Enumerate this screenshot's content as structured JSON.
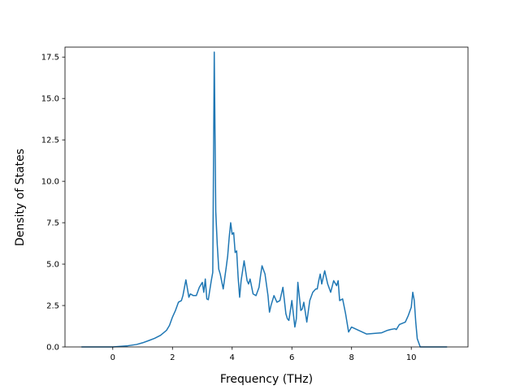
{
  "chart_data": {
    "type": "line",
    "title": "",
    "xlabel": "Frequency (THz)",
    "ylabel": "Density of States",
    "xlim": [
      -1.6,
      11.9
    ],
    "ylim": [
      0,
      18.1
    ],
    "grid": false,
    "legend": "none",
    "line_color": "#1f77b4",
    "xticks": [
      {
        "value": 0,
        "label": "0"
      },
      {
        "value": 2,
        "label": "2"
      },
      {
        "value": 4,
        "label": "4"
      },
      {
        "value": 6,
        "label": "6"
      },
      {
        "value": 8,
        "label": "8"
      },
      {
        "value": 10,
        "label": "10"
      }
    ],
    "yticks": [
      {
        "value": 0.0,
        "label": "0.0"
      },
      {
        "value": 2.5,
        "label": "2.5"
      },
      {
        "value": 5.0,
        "label": "5.0"
      },
      {
        "value": 7.5,
        "label": "7.5"
      },
      {
        "value": 10.0,
        "label": "10.0"
      },
      {
        "value": 12.5,
        "label": "12.5"
      },
      {
        "value": 15.0,
        "label": "15.0"
      },
      {
        "value": 17.5,
        "label": "17.5"
      }
    ],
    "series": [
      {
        "x": [
          -1.05,
          0.0,
          0.5,
          0.8,
          1.0,
          1.2,
          1.4,
          1.6,
          1.7,
          1.8,
          1.9,
          2.0,
          2.1,
          2.2,
          2.3,
          2.35,
          2.45,
          2.55,
          2.6,
          2.7,
          2.8,
          2.9,
          3.0,
          3.05,
          3.1,
          3.15,
          3.2,
          3.3,
          3.35,
          3.4,
          3.45,
          3.5,
          3.55,
          3.6,
          3.7,
          3.8,
          3.85,
          3.9,
          3.95,
          4.0,
          4.05,
          4.1,
          4.15,
          4.2,
          4.25,
          4.3,
          4.4,
          4.5,
          4.55,
          4.6,
          4.7,
          4.8,
          4.9,
          4.95,
          5.0,
          5.1,
          5.2,
          5.25,
          5.3,
          5.4,
          5.5,
          5.6,
          5.65,
          5.7,
          5.8,
          5.85,
          5.9,
          6.0,
          6.1,
          6.15,
          6.2,
          6.3,
          6.35,
          6.4,
          6.5,
          6.6,
          6.7,
          6.8,
          6.85,
          6.9,
          6.95,
          7.0,
          7.1,
          7.2,
          7.3,
          7.4,
          7.5,
          7.55,
          7.6,
          7.7,
          7.8,
          7.9,
          8.0,
          8.5,
          9.0,
          9.2,
          9.3,
          9.45,
          9.5,
          9.55,
          9.6,
          9.8,
          9.9,
          10.0,
          10.05,
          10.1,
          10.15,
          10.2,
          10.3,
          11.2
        ],
        "y": [
          0.0,
          0.0,
          0.07,
          0.15,
          0.25,
          0.38,
          0.52,
          0.7,
          0.85,
          1.0,
          1.3,
          1.8,
          2.2,
          2.7,
          2.8,
          3.1,
          4.05,
          3.0,
          3.2,
          3.1,
          3.1,
          3.6,
          3.9,
          3.3,
          4.1,
          2.9,
          2.85,
          4.0,
          4.5,
          17.8,
          8.2,
          6.2,
          4.7,
          4.4,
          3.5,
          4.8,
          5.5,
          6.6,
          7.5,
          6.8,
          6.9,
          5.7,
          5.8,
          4.2,
          3.0,
          4.0,
          5.2,
          4.0,
          3.8,
          4.1,
          3.2,
          3.1,
          3.6,
          4.3,
          4.9,
          4.4,
          3.1,
          2.1,
          2.5,
          3.1,
          2.7,
          2.8,
          3.2,
          3.6,
          2.0,
          1.7,
          1.6,
          2.8,
          1.2,
          1.7,
          3.9,
          2.2,
          2.3,
          2.7,
          1.5,
          2.8,
          3.3,
          3.5,
          3.5,
          4.0,
          4.4,
          3.8,
          4.6,
          3.8,
          3.3,
          4.0,
          3.7,
          4.0,
          2.8,
          2.9,
          2.0,
          0.9,
          1.2,
          0.78,
          0.85,
          1.0,
          1.05,
          1.1,
          1.05,
          1.2,
          1.35,
          1.5,
          1.9,
          2.4,
          3.3,
          2.8,
          1.5,
          0.5,
          0.0,
          0.0
        ]
      }
    ]
  }
}
